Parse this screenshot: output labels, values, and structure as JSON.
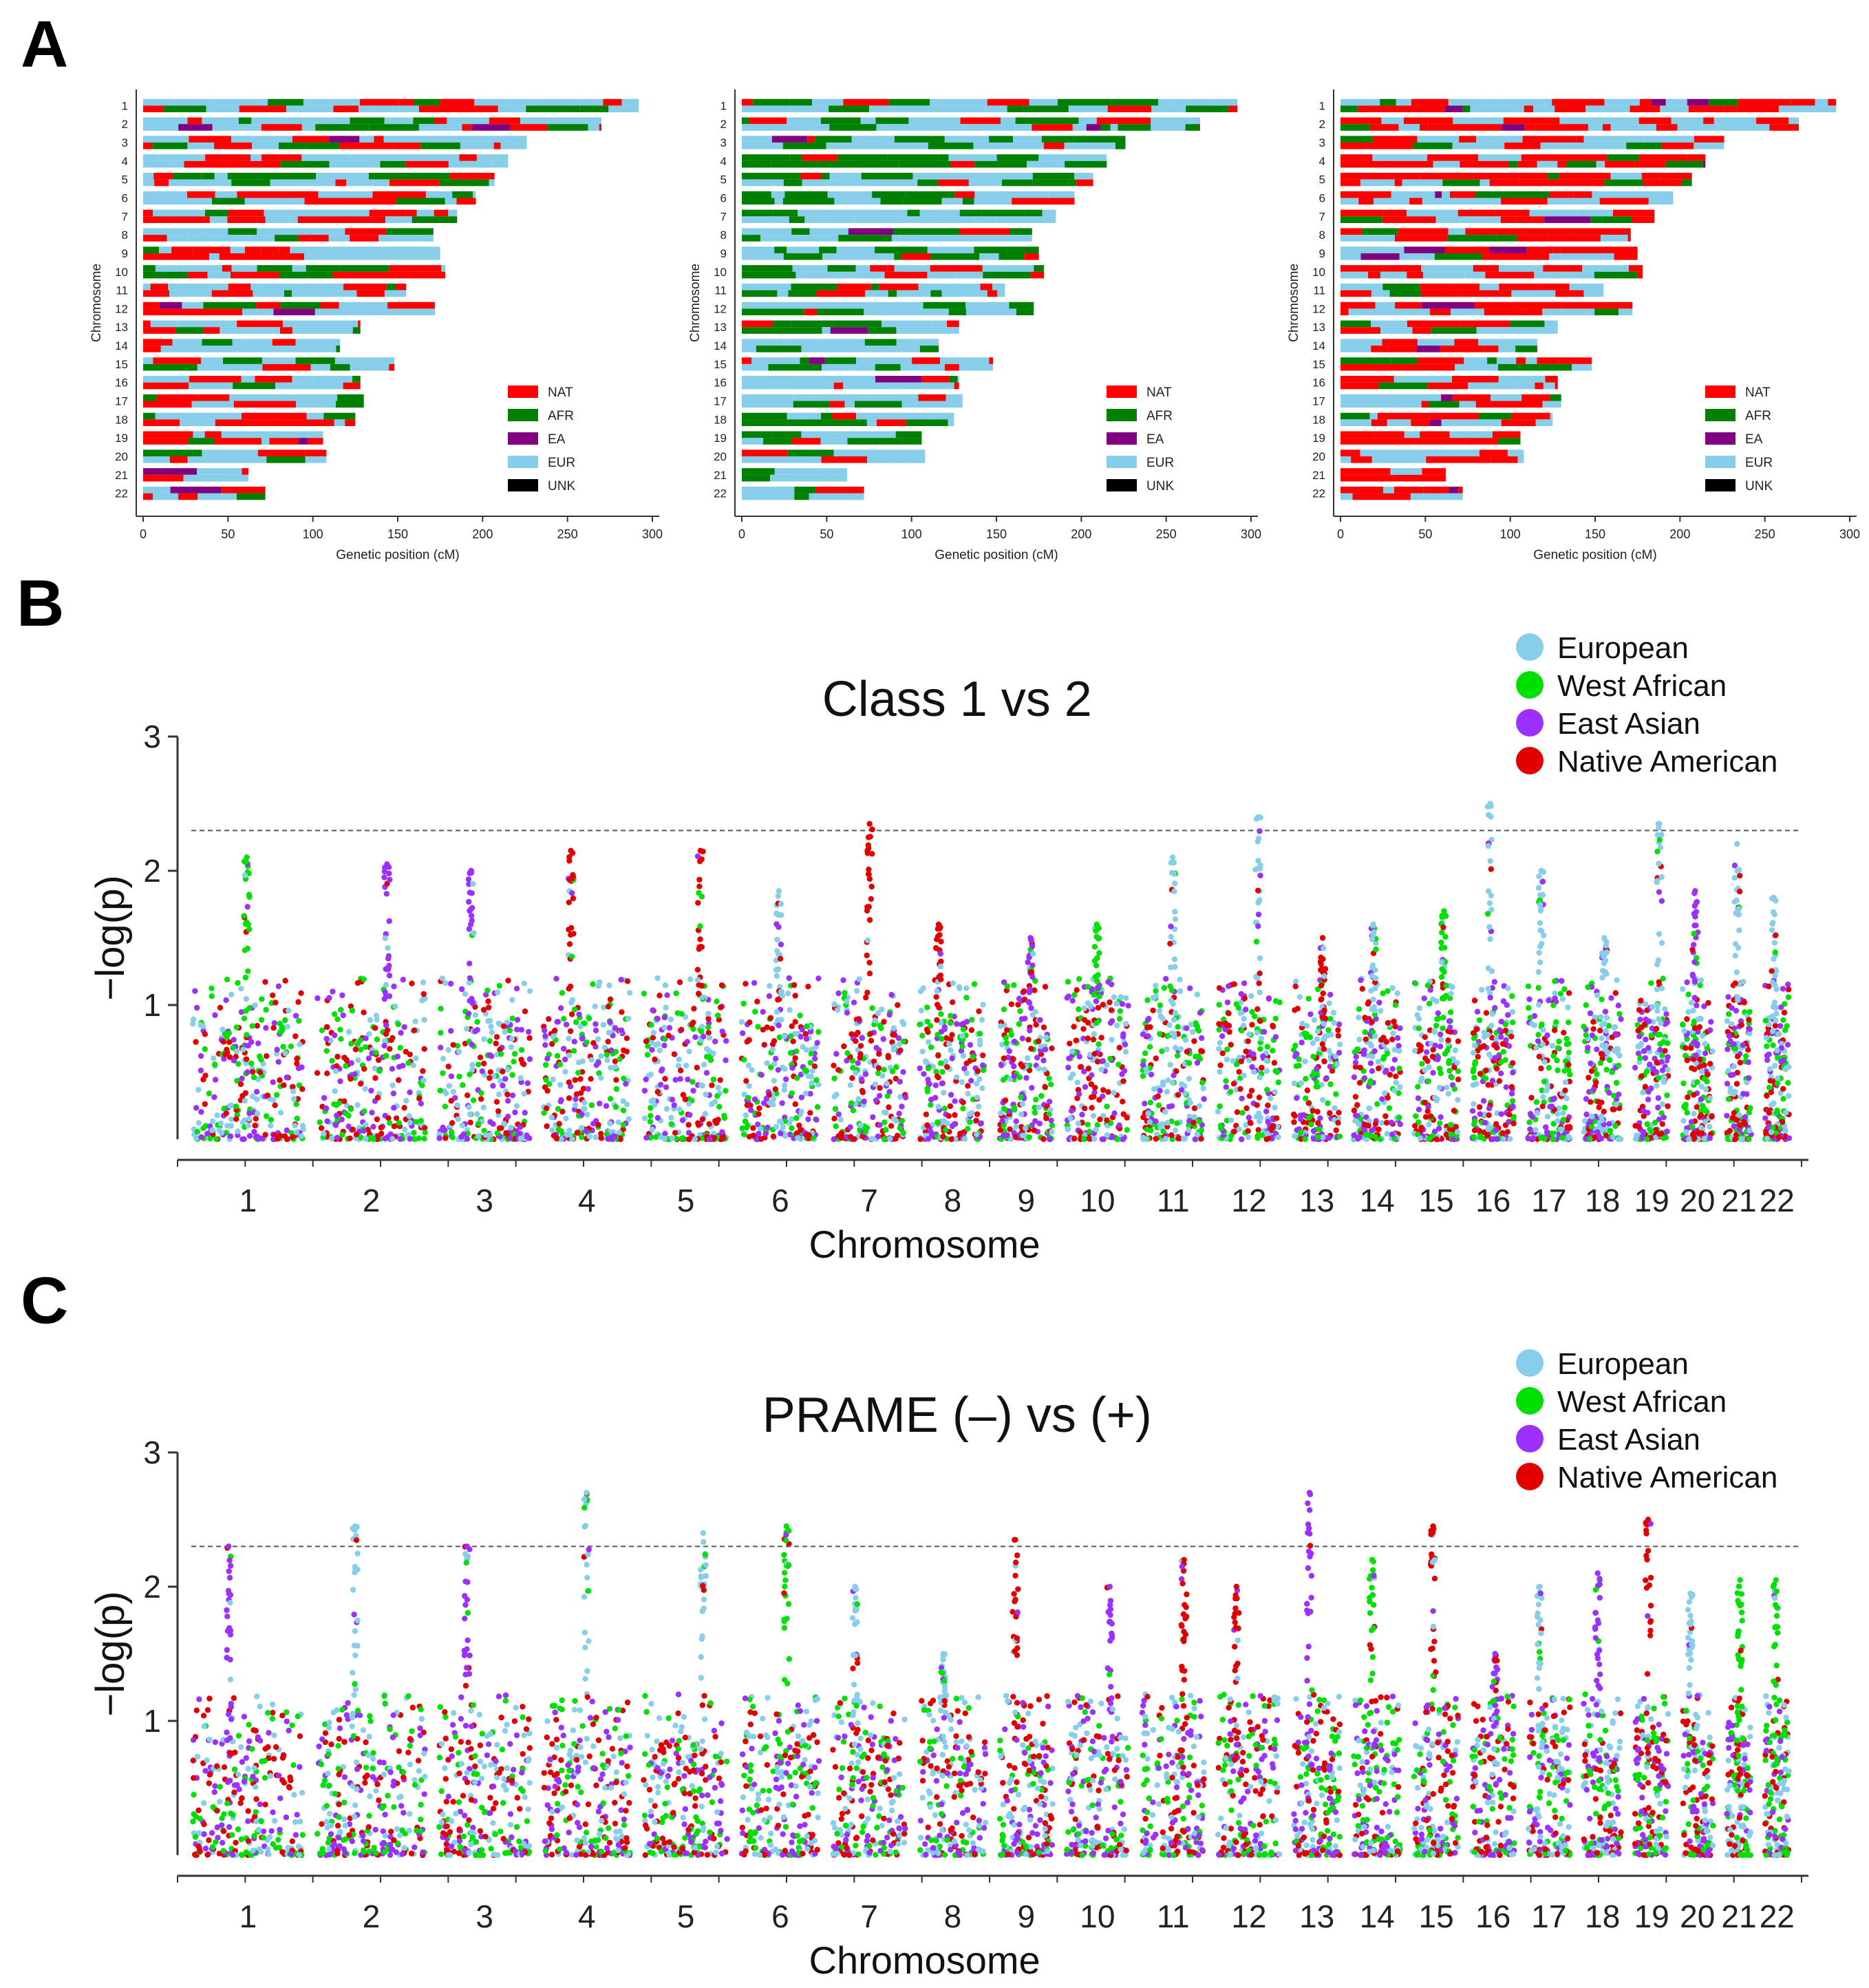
{
  "panels": {
    "a": {
      "letter": "A"
    },
    "b": {
      "letter": "B"
    },
    "c": {
      "letter": "C"
    }
  },
  "colors": {
    "NAT": "#ff0000",
    "AFR": "#008000",
    "EA": "#800080",
    "EUR": "#87ceeb",
    "UNK": "#000000",
    "european_dot": "#87ceeb",
    "west_african_dot": "#00e000",
    "east_asian_dot": "#9b30ff",
    "native_american_dot": "#e00000"
  },
  "chart_data": [
    {
      "type": "karyogram",
      "panel": "A",
      "index": 0,
      "xlabel": "Genetic position (cM)",
      "ylabel": "Chromosome",
      "xlim": [
        0,
        300
      ],
      "xticks": [
        0,
        50,
        100,
        150,
        200,
        250,
        300
      ],
      "chromosomes": [
        "1",
        "2",
        "3",
        "4",
        "5",
        "6",
        "7",
        "8",
        "9",
        "10",
        "11",
        "12",
        "13",
        "14",
        "15",
        "16",
        "17",
        "18",
        "19",
        "20",
        "21",
        "22"
      ],
      "chromosome_lengths_cM": [
        292,
        270,
        226,
        215,
        207,
        196,
        185,
        171,
        175,
        178,
        155,
        172,
        128,
        116,
        148,
        128,
        130,
        125,
        106,
        108,
        62,
        72
      ],
      "legend": [
        "NAT",
        "AFR",
        "EA",
        "EUR",
        "UNK"
      ],
      "dominant": "mixed"
    },
    {
      "type": "karyogram",
      "panel": "A",
      "index": 1,
      "xlabel": "Genetic position (cM)",
      "ylabel": "Chromosome",
      "xlim": [
        0,
        300
      ],
      "xticks": [
        0,
        50,
        100,
        150,
        200,
        250,
        300
      ],
      "chromosomes": [
        "1",
        "2",
        "3",
        "4",
        "5",
        "6",
        "7",
        "8",
        "9",
        "10",
        "11",
        "12",
        "13",
        "14",
        "15",
        "16",
        "17",
        "18",
        "19",
        "20",
        "21",
        "22"
      ],
      "chromosome_lengths_cM": [
        292,
        270,
        226,
        215,
        207,
        196,
        185,
        171,
        175,
        178,
        155,
        172,
        128,
        116,
        148,
        128,
        130,
        125,
        106,
        108,
        62,
        72
      ],
      "legend": [
        "NAT",
        "AFR",
        "EA",
        "EUR",
        "UNK"
      ],
      "dominant": "EUR-AFR"
    },
    {
      "type": "karyogram",
      "panel": "A",
      "index": 2,
      "xlabel": "Genetic position (cM)",
      "ylabel": "Chromosome",
      "xlim": [
        0,
        300
      ],
      "xticks": [
        0,
        50,
        100,
        150,
        200,
        250,
        300
      ],
      "chromosomes": [
        "1",
        "2",
        "3",
        "4",
        "5",
        "6",
        "7",
        "8",
        "9",
        "10",
        "11",
        "12",
        "13",
        "14",
        "15",
        "16",
        "17",
        "18",
        "19",
        "20",
        "21",
        "22"
      ],
      "chromosome_lengths_cM": [
        292,
        270,
        226,
        215,
        207,
        196,
        185,
        171,
        175,
        178,
        155,
        172,
        128,
        116,
        148,
        128,
        130,
        125,
        106,
        108,
        62,
        72
      ],
      "legend": [
        "NAT",
        "AFR",
        "EA",
        "EUR",
        "UNK"
      ],
      "dominant": "NAT"
    },
    {
      "type": "scatter",
      "subtype": "manhattan",
      "panel": "B",
      "title": "Class 1 vs 2",
      "xlabel": "Chromosome",
      "ylabel": "−log(p)",
      "ylim": [
        0,
        3
      ],
      "yticks": [
        "1",
        "2",
        "3"
      ],
      "threshold": 2.3,
      "chromosome_labels": [
        "1",
        "2",
        "3",
        "4",
        "5",
        "6",
        "7",
        "8",
        "9",
        "10",
        "11",
        "12",
        "13",
        "14",
        "15",
        "16",
        "17",
        "18",
        "19",
        "20",
        "21",
        "22"
      ],
      "series": [
        {
          "name": "European"
        },
        {
          "name": "West African"
        },
        {
          "name": "East Asian"
        },
        {
          "name": "Native American"
        }
      ],
      "peak_max_per_chromosome": [
        2.1,
        2.05,
        2.0,
        2.15,
        2.15,
        1.85,
        2.35,
        1.6,
        1.5,
        1.6,
        2.1,
        2.4,
        1.5,
        1.6,
        1.7,
        2.5,
        2.0,
        1.5,
        2.35,
        1.85,
        2.2,
        1.8
      ]
    },
    {
      "type": "scatter",
      "subtype": "manhattan",
      "panel": "C",
      "title": "PRAME (–) vs (+)",
      "xlabel": "Chromosome",
      "ylabel": "−log(p)",
      "ylim": [
        0,
        3
      ],
      "yticks": [
        "1",
        "2",
        "3"
      ],
      "threshold": 2.3,
      "chromosome_labels": [
        "1",
        "2",
        "3",
        "4",
        "5",
        "6",
        "7",
        "8",
        "9",
        "10",
        "11",
        "12",
        "13",
        "14",
        "15",
        "16",
        "17",
        "18",
        "19",
        "20",
        "21",
        "22"
      ],
      "series": [
        {
          "name": "European"
        },
        {
          "name": "West African"
        },
        {
          "name": "East Asian"
        },
        {
          "name": "Native American"
        }
      ],
      "peak_max_per_chromosome": [
        2.3,
        2.45,
        2.3,
        2.7,
        2.4,
        2.45,
        2.0,
        1.5,
        2.35,
        2.0,
        2.2,
        2.0,
        2.7,
        2.2,
        2.45,
        1.5,
        2.0,
        2.1,
        2.5,
        1.95,
        2.05,
        2.05
      ]
    }
  ]
}
